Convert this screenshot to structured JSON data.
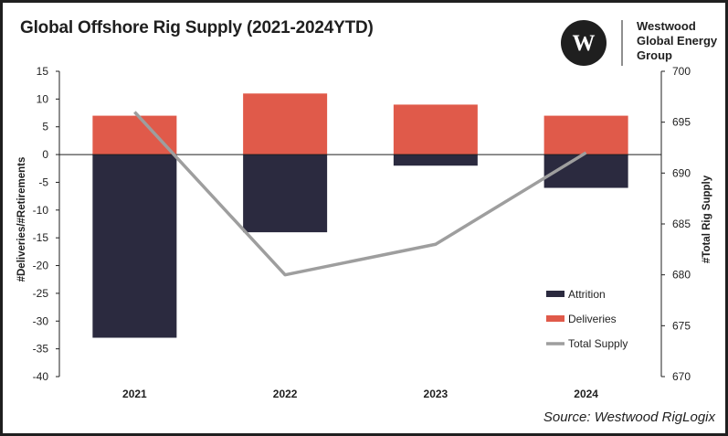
{
  "chart_data": {
    "type": "bar",
    "title": "Global Offshore Rig Supply (2021-2024YTD)",
    "categories": [
      "2021",
      "2022",
      "2023",
      "2024"
    ],
    "series": [
      {
        "name": "Attrition",
        "kind": "bar",
        "axis": "left",
        "color": "#2b2a3f",
        "values": [
          -33,
          -14,
          -2,
          -6
        ]
      },
      {
        "name": "Deliveries",
        "kind": "bar",
        "axis": "left",
        "color": "#e05a4a",
        "values": [
          7,
          11,
          9,
          7
        ]
      },
      {
        "name": "Total Supply",
        "kind": "line",
        "axis": "right",
        "color": "#9e9e9e",
        "values": [
          696,
          680,
          683,
          692
        ]
      }
    ],
    "ylabel": "#Deliveries/#Retirements",
    "y2label": "#Total Rig Supply",
    "ylim": [
      -40,
      15
    ],
    "y2lim": [
      670,
      700
    ],
    "yticks": [
      "15",
      "10",
      "5",
      "0",
      "-5",
      "-10",
      "-15",
      "-20",
      "-25",
      "-30",
      "-35",
      "-40"
    ],
    "y2ticks": [
      "700",
      "695",
      "690",
      "685",
      "680",
      "675",
      "670"
    ],
    "legend_position": "bottom-right"
  },
  "logo": {
    "line1": "Westwood",
    "line2": "Global Energy",
    "line3": "Group"
  },
  "source": "Source: Westwood RigLogix"
}
